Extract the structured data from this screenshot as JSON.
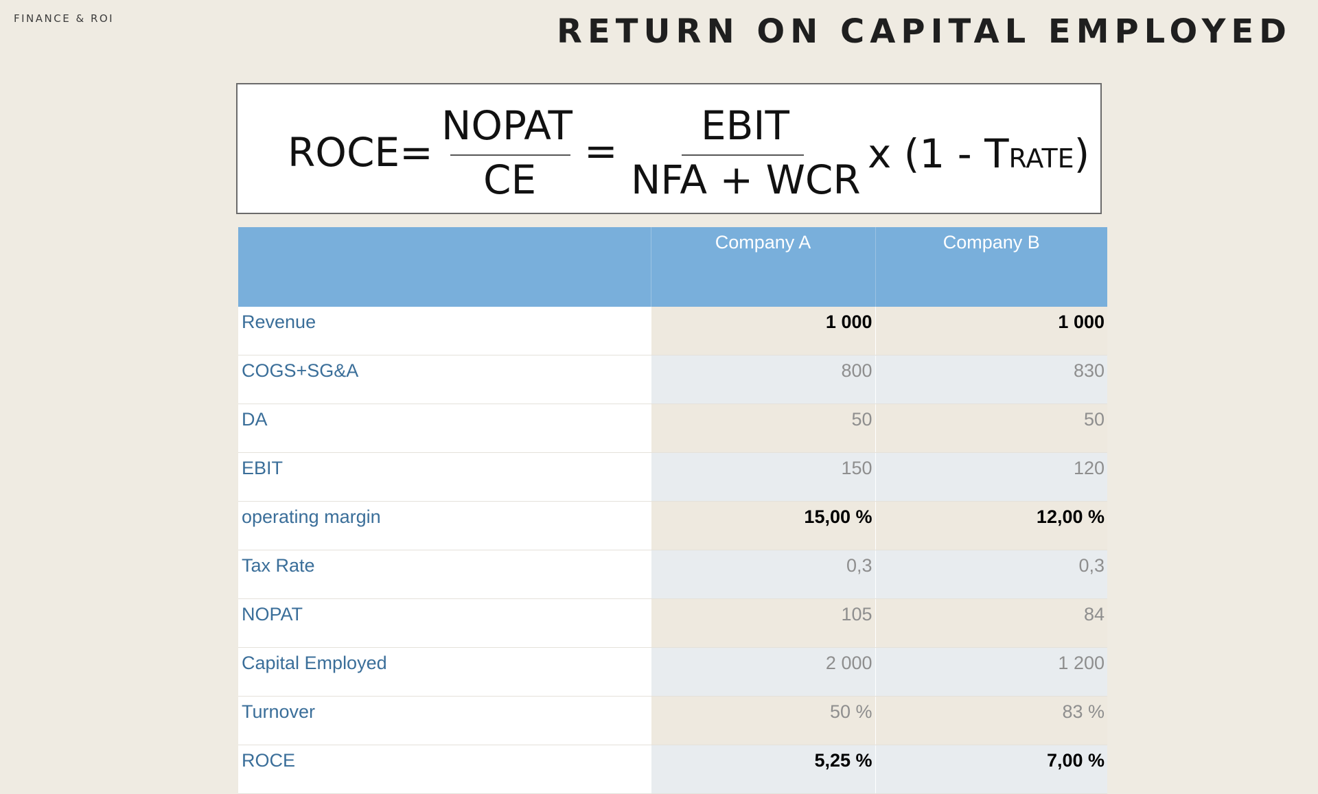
{
  "header": {
    "section_label": "FINANCE & ROI",
    "title": "RETURN ON CAPITAL EMPLOYED"
  },
  "formula": {
    "lhs": "ROCE=",
    "numerator_1": "NOPAT",
    "denominator_1": "CE",
    "equals": "=",
    "numerator_2": "EBIT",
    "denominator_2": "NFA + WCR",
    "multiplier_prefix": "x (1 - T",
    "multiplier_subscript": "RATE",
    "multiplier_suffix": ")"
  },
  "table": {
    "columns": [
      "",
      "Company A",
      "Company B"
    ],
    "rows": [
      {
        "label": "Revenue",
        "a": "1 000",
        "b": "1 000",
        "bold": true
      },
      {
        "label": "COGS+SG&A",
        "a": "800",
        "b": "830",
        "bold": false
      },
      {
        "label": "DA",
        "a": "50",
        "b": "50",
        "bold": false
      },
      {
        "label": "EBIT",
        "a": "150",
        "b": "120",
        "bold": false
      },
      {
        "label": "operating margin",
        "a": "15,00 %",
        "b": "12,00 %",
        "bold": true
      },
      {
        "label": "Tax Rate",
        "a": "0,3",
        "b": "0,3",
        "bold": false
      },
      {
        "label": "NOPAT",
        "a": "105",
        "b": "84",
        "bold": false
      },
      {
        "label": "Capital Employed",
        "a": "2 000",
        "b": "1 200",
        "bold": false
      },
      {
        "label": "Turnover",
        "a": "50 %",
        "b": "83 %",
        "bold": false
      },
      {
        "label": "ROCE",
        "a": "5,25 %",
        "b": "7,00 %",
        "bold": true
      }
    ]
  }
}
